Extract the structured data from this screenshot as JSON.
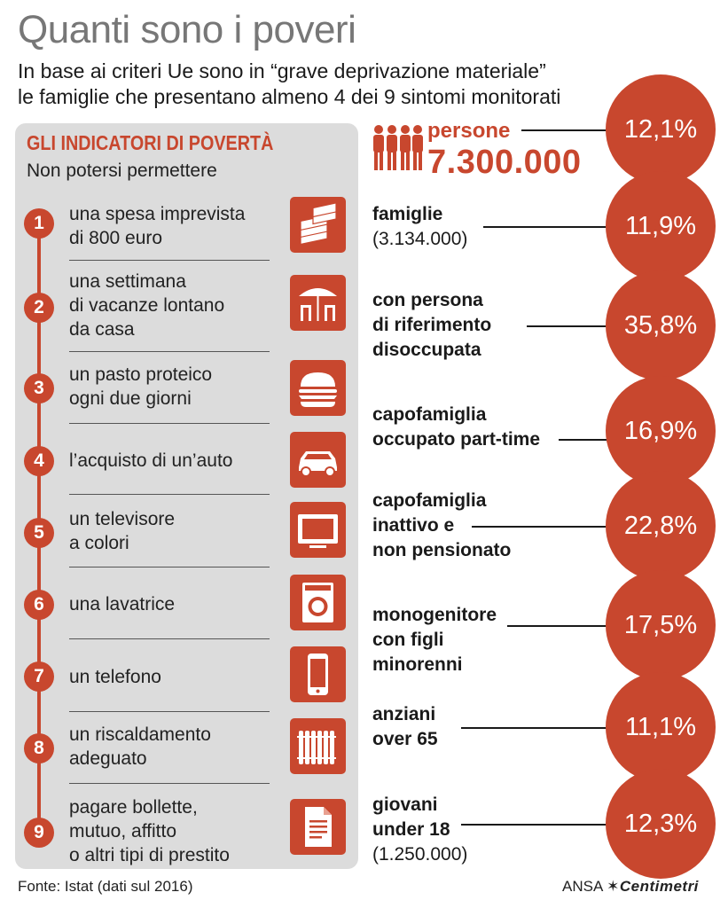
{
  "title": "Quanti sono i poveri",
  "subtitle": [
    "In base ai criteri Ue sono in “grave deprivazione materiale”",
    "le famiglie che presentano almeno 4 dei 9 sintomi monitorati"
  ],
  "panel": {
    "title": "GLI INDICATORI DI POVERTÀ",
    "subtitle": "Non potersi permettere",
    "items": [
      {
        "num": "1",
        "lines": [
          "una spesa imprevista",
          "di 800 euro"
        ],
        "icon": "money-stack-icon"
      },
      {
        "num": "2",
        "lines": [
          "una settimana",
          "di vacanze lontano",
          "da casa"
        ],
        "icon": "beach-umbrella-icon"
      },
      {
        "num": "3",
        "lines": [
          "un pasto proteico",
          "ogni due giorni"
        ],
        "icon": "burger-icon"
      },
      {
        "num": "4",
        "lines": [
          "l’acquisto di un’auto"
        ],
        "icon": "car-icon"
      },
      {
        "num": "5",
        "lines": [
          "un televisore",
          "a colori"
        ],
        "icon": "tv-icon"
      },
      {
        "num": "6",
        "lines": [
          "una lavatrice"
        ],
        "icon": "washing-machine-icon"
      },
      {
        "num": "7",
        "lines": [
          "un telefono"
        ],
        "icon": "phone-icon"
      },
      {
        "num": "8",
        "lines": [
          "un riscaldamento",
          "adeguato"
        ],
        "icon": "radiator-icon"
      },
      {
        "num": "9",
        "lines": [
          "pagare bollette,",
          "mutuo, affitto",
          "o altri tipi di prestito"
        ],
        "icon": "document-icon"
      }
    ]
  },
  "persone": {
    "label": "persone",
    "value": "7.300.000",
    "icon": "people-icon"
  },
  "stats": [
    {
      "label": [
        "persone"
      ],
      "percent": "12,1%"
    },
    {
      "label": [
        "famiglie"
      ],
      "note": "(3.134.000)",
      "percent": "11,9%"
    },
    {
      "label": [
        "con persona",
        "di riferimento",
        "disoccupata"
      ],
      "percent": "35,8%"
    },
    {
      "label": [
        "capofamiglia",
        "occupato part-time"
      ],
      "percent": "16,9%"
    },
    {
      "label": [
        "capofamiglia",
        "inattivo e",
        "non pensionato"
      ],
      "percent": "22,8%"
    },
    {
      "label": [
        "monogenitore",
        "con figli",
        "minorenni"
      ],
      "percent": "17,5%"
    },
    {
      "label": [
        "anziani",
        "over 65"
      ],
      "percent": "11,1%"
    },
    {
      "label": [
        "giovani",
        "under 18"
      ],
      "note": "(1.250.000)",
      "percent": "12,3%"
    }
  ],
  "footer": "Fonte: Istat (dati sul 2016)",
  "credit": {
    "prefix": "ANSA",
    "brand": "✶Centimetri"
  },
  "colors": {
    "accent": "#c8472e",
    "panel": "#dcdcdc",
    "title": "#777777"
  }
}
